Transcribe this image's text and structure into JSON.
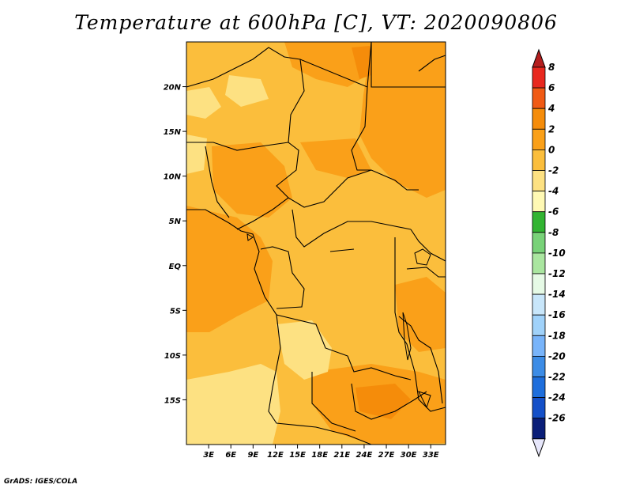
{
  "title": "Temperature at 600hPa [C], VT: 2020090806",
  "credit": "GrADS: IGES/COLA",
  "map": {
    "lon_range": [
      0,
      35
    ],
    "lat_range": [
      -20,
      25
    ],
    "lat_ticks": [
      {
        "lat": 20,
        "label": "20N"
      },
      {
        "lat": 15,
        "label": "15N"
      },
      {
        "lat": 10,
        "label": "10N"
      },
      {
        "lat": 5,
        "label": "5N"
      },
      {
        "lat": 0,
        "label": "EQ"
      },
      {
        "lat": -5,
        "label": "5S"
      },
      {
        "lat": -10,
        "label": "10S"
      },
      {
        "lat": -15,
        "label": "15S"
      }
    ],
    "lon_ticks": [
      {
        "lon": 3,
        "label": "3E"
      },
      {
        "lon": 6,
        "label": "6E"
      },
      {
        "lon": 9,
        "label": "9E"
      },
      {
        "lon": 12,
        "label": "12E"
      },
      {
        "lon": 15,
        "label": "15E"
      },
      {
        "lon": 18,
        "label": "18E"
      },
      {
        "lon": 21,
        "label": "21E"
      },
      {
        "lon": 24,
        "label": "24E"
      },
      {
        "lon": 27,
        "label": "27E"
      },
      {
        "lon": 30,
        "label": "30E"
      },
      {
        "lon": 33,
        "label": "33E"
      }
    ]
  },
  "colorbar": {
    "levels": [
      "8",
      "6",
      "4",
      "2",
      "0",
      "-2",
      "-4",
      "-6",
      "-8",
      "-10",
      "-12",
      "-14",
      "-16",
      "-18",
      "-20",
      "-22",
      "-24",
      "-26"
    ],
    "colors": [
      "#e8281e",
      "#f05a14",
      "#f58c0a",
      "#faa019",
      "#fbbe3c",
      "#fde182",
      "#fff9b4",
      "#32b432",
      "#78d278",
      "#aae6a0",
      "#e6fae6",
      "#c8e6fa",
      "#a0d2fa",
      "#78b4fa",
      "#3c8ce6",
      "#1e6edc",
      "#1450c8",
      "#0a1e78"
    ],
    "top_arrow_color": "#b41e1e",
    "bottom_arrow_color": "#e6e6fa"
  }
}
